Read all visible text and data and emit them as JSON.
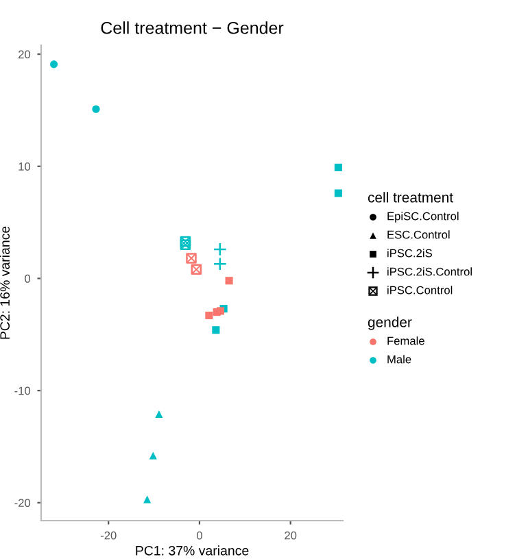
{
  "chart_data": {
    "type": "scatter",
    "title": "Cell treatment − Gender",
    "xlabel": "PC1: 37% variance",
    "ylabel": "PC2: 16% variance",
    "annotations": [
      "cell treatment",
      "EpiSC.Control",
      "ESC.Control",
      "iPSC.2iS",
      "iPSC.2iS.Control",
      "iPSC.Control",
      "gender",
      "Female",
      "Male"
    ],
    "grid": false,
    "xlim": [
      -34.8,
      31.5
    ],
    "ylim": [
      -21.6,
      20.8
    ],
    "xticks": [
      -20,
      0,
      20
    ],
    "yticks": [
      -20,
      -10,
      0,
      10,
      20
    ],
    "series": [
      {
        "marker": "circle",
        "color": "#00bfc4",
        "x": [
          -32,
          -22.75
        ],
        "values": [
          19.1,
          15.1
        ]
      },
      {
        "marker": "triangle",
        "color": "#00bfc4",
        "x": [
          -8.9,
          -10.2,
          -11.5
        ],
        "values": [
          -12.1,
          -15.8,
          -19.7
        ]
      },
      {
        "marker": "square",
        "color": "#00bfc4",
        "x": [
          30.5,
          30.5,
          5.3,
          3.6
        ],
        "values": [
          9.9,
          7.6,
          -2.7,
          -4.6
        ]
      },
      {
        "marker": "square",
        "color": "#f8766d",
        "x": [
          6.5,
          2.1,
          3.8,
          4.6
        ],
        "values": [
          -0.2,
          -3.3,
          -3.0,
          -2.9
        ]
      },
      {
        "marker": "cross",
        "color": "#00bfc4",
        "x": [
          4.5,
          4.5
        ],
        "values": [
          2.6,
          1.3
        ]
      },
      {
        "color": "#00bfc4",
        "x": [
          -3.1,
          -3.1
        ],
        "values": [
          3.3,
          3.0
        ]
      },
      {
        "color": "#f8766d",
        "x": [
          -1.8,
          -0.7
        ],
        "values": [
          1.8,
          0.8
        ]
      }
    ]
  }
}
